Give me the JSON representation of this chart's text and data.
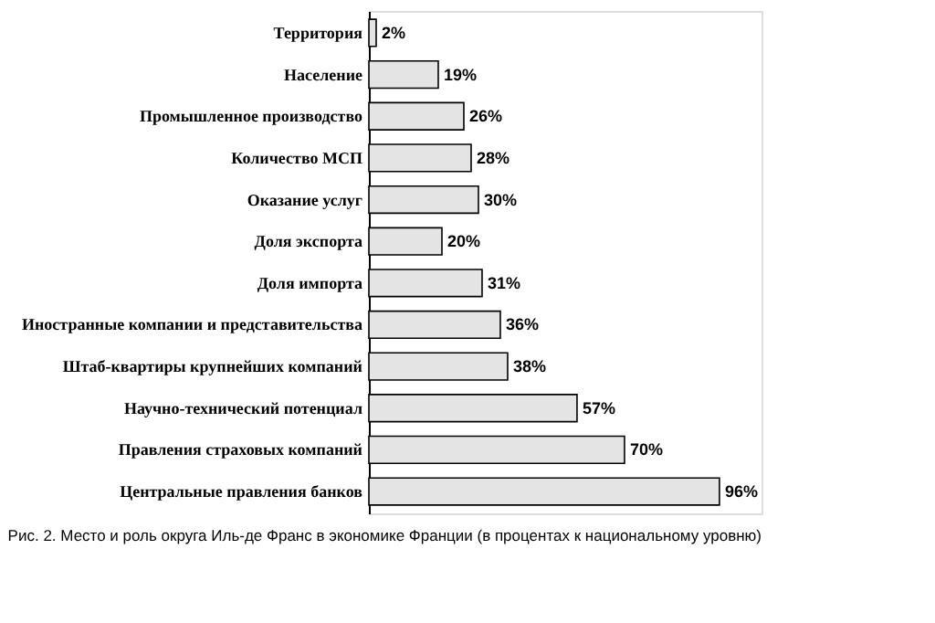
{
  "chart_data": {
    "type": "bar",
    "orientation": "horizontal",
    "categories": [
      "Территория",
      "Население",
      "Промышленное производство",
      "Количество МСП",
      "Оказание услуг",
      "Доля экспорта",
      "Доля импорта",
      "Иностранные компании и представительства",
      "Штаб-квартиры крупнейших компаний",
      "Научно-технический потенциал",
      "Правления страховых компаний",
      "Центральные правления банков"
    ],
    "values": [
      2,
      19,
      26,
      28,
      30,
      20,
      31,
      36,
      38,
      57,
      70,
      96
    ],
    "value_labels": [
      "2%",
      "19%",
      "26%",
      "28%",
      "30%",
      "20%",
      "31%",
      "36%",
      "38%",
      "57%",
      "70%",
      "96%"
    ],
    "color": "#e4e4e4",
    "tick_labels": "y",
    "annotations": [
      "Рис. 2. Место и роль округа Иль-де Франс в экономике Франции (в процентах к национальному уровню)"
    ]
  }
}
